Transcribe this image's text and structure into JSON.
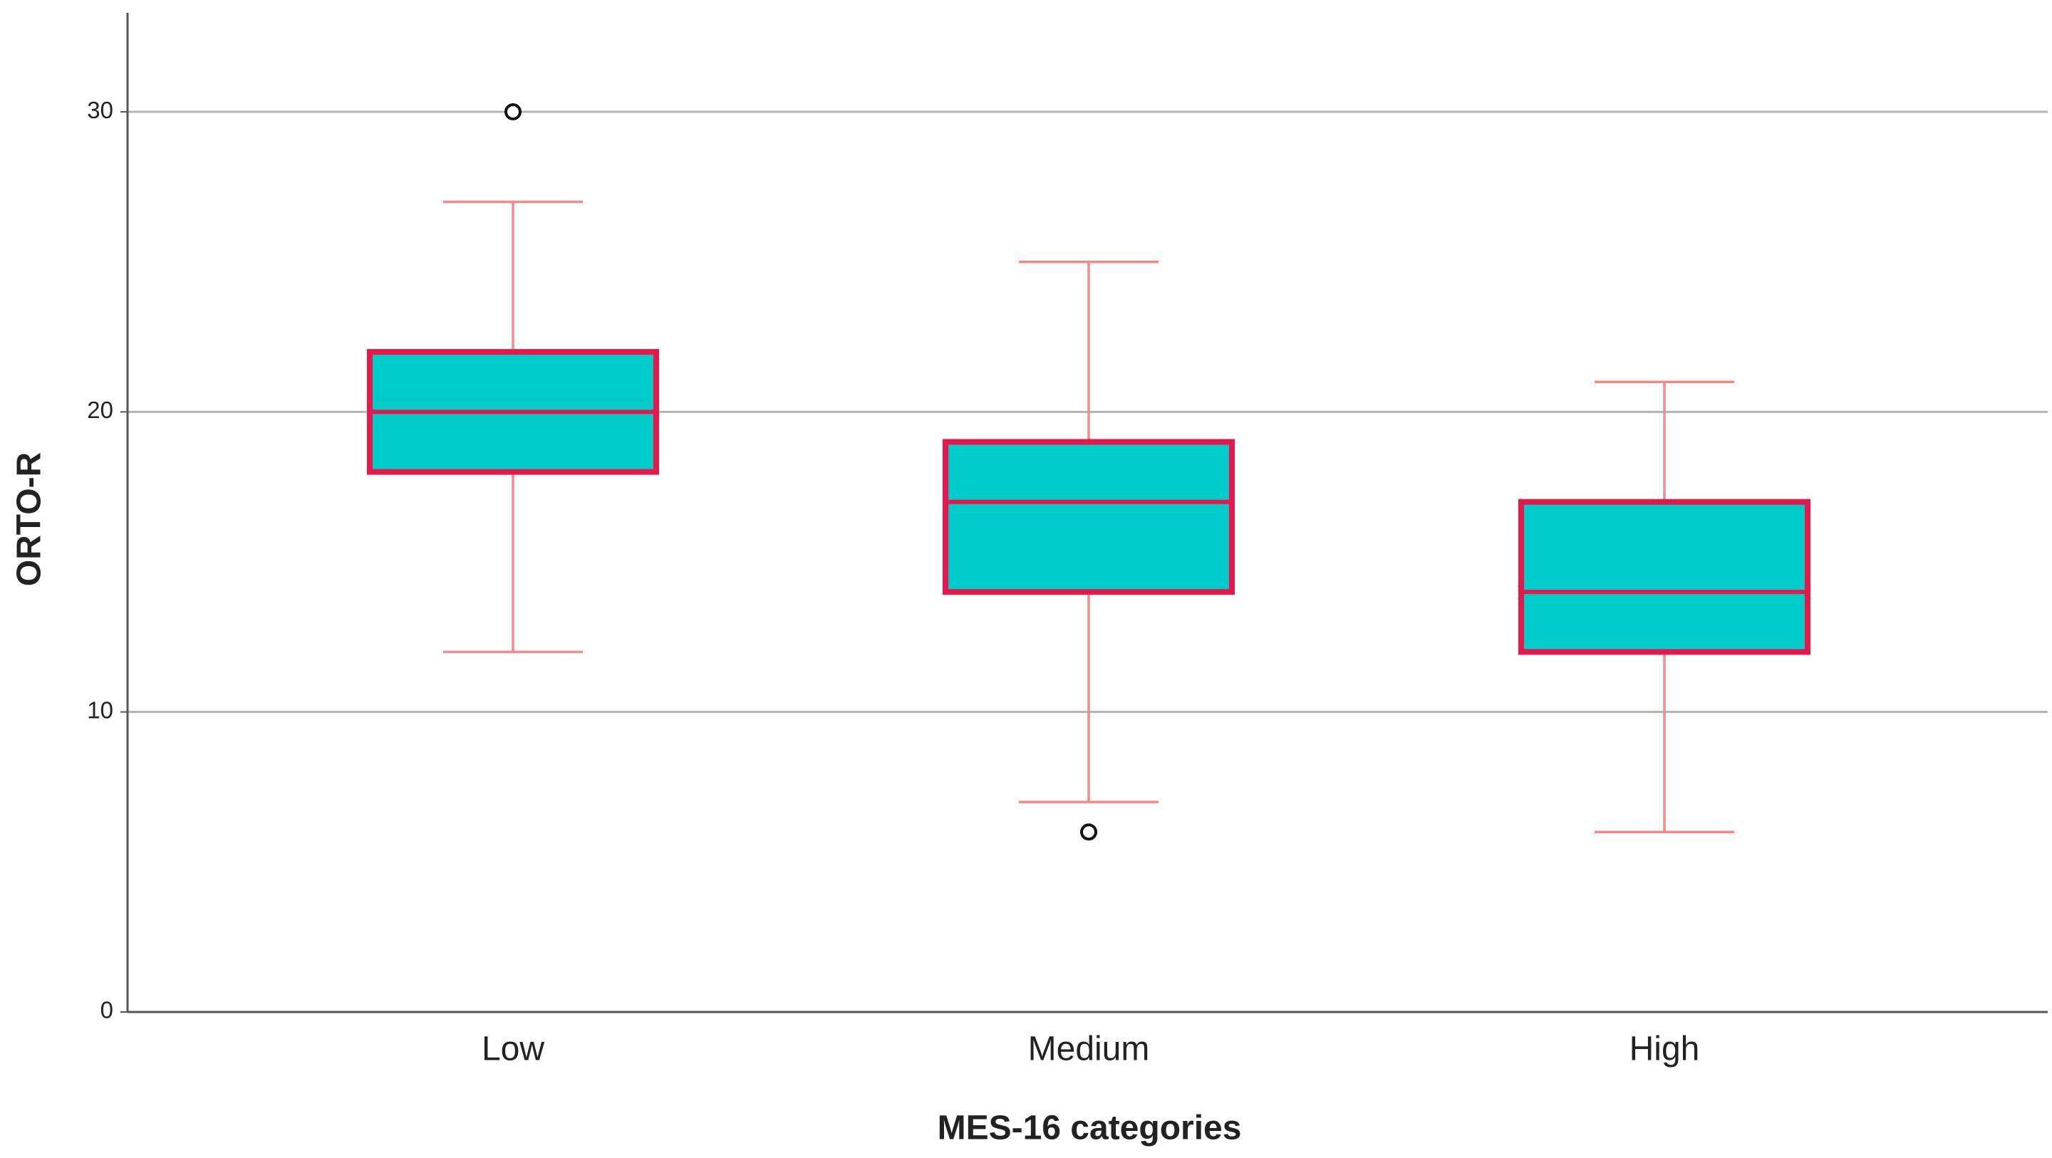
{
  "chart_data": {
    "type": "box",
    "x_label": "MES-16 categories",
    "y_label": "ORTO-R",
    "categories": [
      "Low",
      "Medium",
      "High"
    ],
    "boxes": [
      {
        "min": 12,
        "q1": 18,
        "median": 20,
        "q3": 22,
        "max": 27,
        "outliers": [
          30
        ]
      },
      {
        "min": 7,
        "q1": 14,
        "median": 17,
        "q3": 19,
        "max": 25,
        "outliers": [
          6
        ]
      },
      {
        "min": 6,
        "q1": 12,
        "median": 14,
        "q3": 17,
        "max": 21
      }
    ],
    "box_color": "#00cccc",
    "edge_color": "#e8174a",
    "whisker_color": "#f28a8a",
    "ylim": [
      0,
      33.3
    ],
    "yticks": [
      0,
      10,
      20,
      30
    ],
    "grid": true
  }
}
